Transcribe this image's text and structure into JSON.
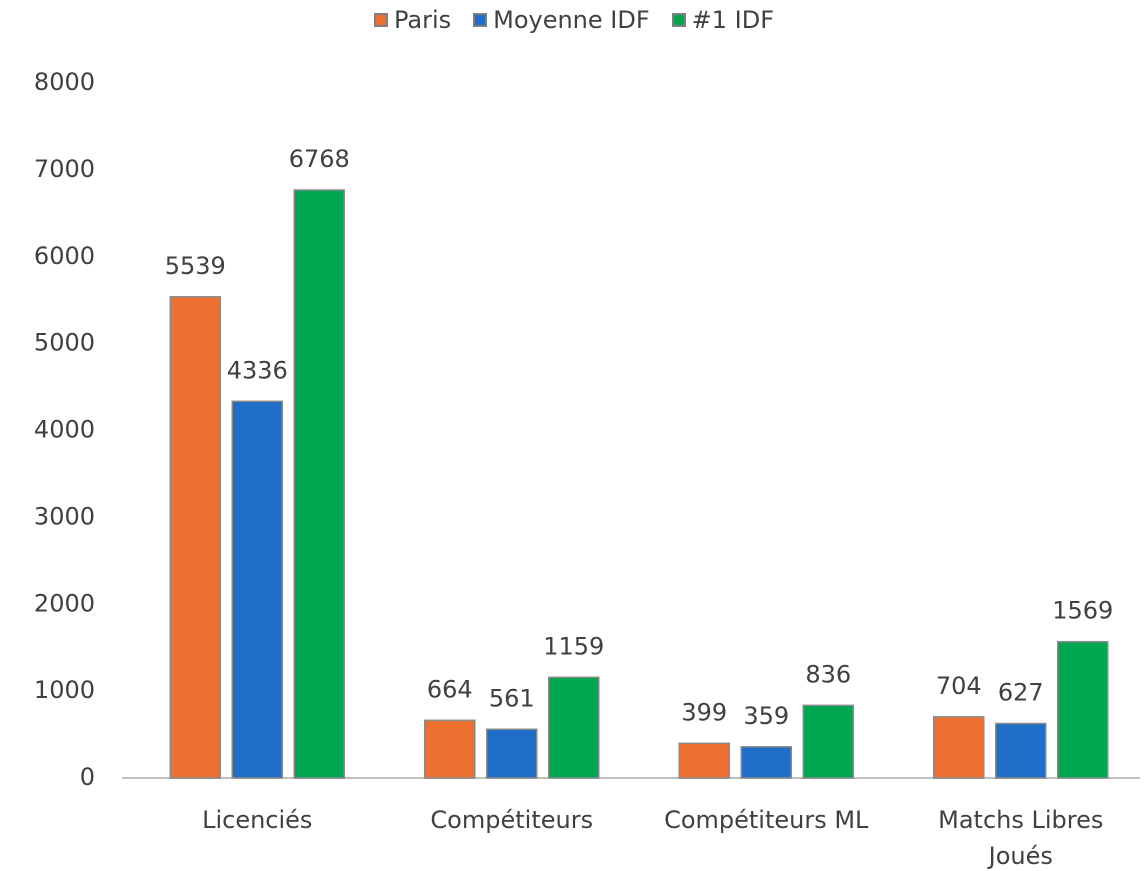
{
  "chart_data": {
    "type": "bar",
    "categories": [
      "Licenciés",
      "Compétiteurs",
      "Compétiteurs ML",
      "Matchs Libres Joués"
    ],
    "series": [
      {
        "name": "Paris",
        "color": "#ed7030",
        "values": [
          5539,
          664,
          399,
          704
        ]
      },
      {
        "name": "Moyenne IDF",
        "color": "#1f6fc8",
        "values": [
          4336,
          561,
          359,
          627
        ]
      },
      {
        "name": "#1 IDF",
        "color": "#00a650",
        "values": [
          6768,
          1159,
          836,
          1569
        ]
      }
    ],
    "ylim": [
      0,
      8000
    ],
    "yticks": [
      0,
      1000,
      2000,
      3000,
      4000,
      5000,
      6000,
      7000,
      8000
    ],
    "grid": false,
    "legend": "top"
  }
}
